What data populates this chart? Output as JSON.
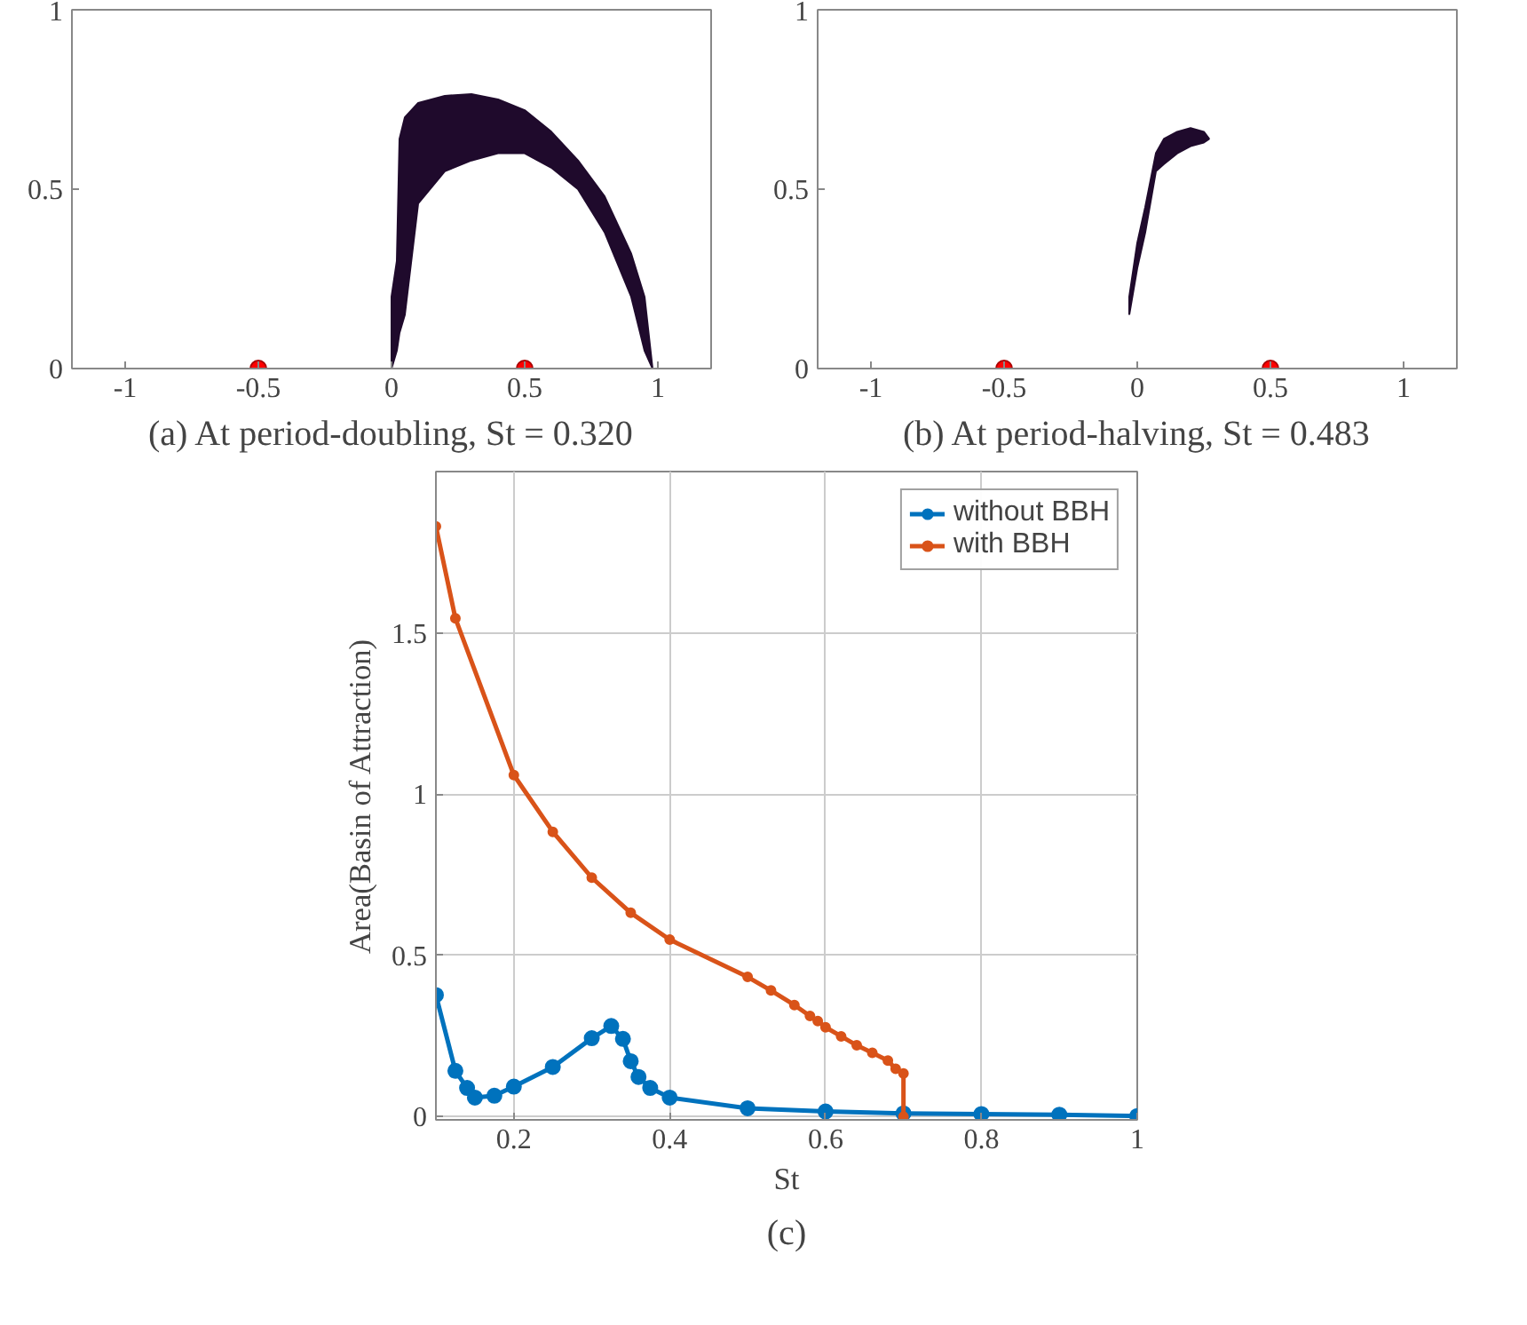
{
  "chart_data": [
    {
      "type": "scatter",
      "title": "(a) At period-doubling, St = 0.320",
      "xlim": [
        -1.2,
        1.2
      ],
      "ylim": [
        0,
        1
      ],
      "xticks": [
        -1,
        -0.5,
        0,
        0.5,
        1
      ],
      "yticks": [
        0,
        0.5,
        1
      ],
      "grid": false,
      "series": [
        {
          "type": "area",
          "color": "#1f0a2c",
          "x": [
            0.0,
            0.02,
            0.03,
            0.05,
            0.1,
            0.2,
            0.3,
            0.4,
            0.5,
            0.6,
            0.7,
            0.8,
            0.9,
            0.95,
            0.98,
            0.95,
            0.9,
            0.8,
            0.7,
            0.6,
            0.5,
            0.4,
            0.3,
            0.2,
            0.1,
            0.05,
            0.03,
            0.02,
            0.0
          ],
          "values": [
            0.2,
            0.3,
            0.64,
            0.7,
            0.74,
            0.76,
            0.765,
            0.75,
            0.72,
            0.66,
            0.58,
            0.48,
            0.32,
            0.2,
            0.0,
            0.05,
            0.2,
            0.38,
            0.5,
            0.56,
            0.6,
            0.6,
            0.58,
            0.55,
            0.46,
            0.15,
            0.1,
            0.05,
            0.0
          ]
        },
        {
          "type": "scatter",
          "marker": "circle",
          "color": "#ff0000",
          "x": [
            -0.5,
            0.5
          ],
          "values": [
            0,
            0
          ]
        }
      ]
    },
    {
      "type": "scatter",
      "title": "(b) At period-halving, St = 0.483",
      "xlim": [
        -1.2,
        1.2
      ],
      "ylim": [
        0,
        1
      ],
      "xticks": [
        -1,
        -0.5,
        0,
        0.5,
        1
      ],
      "yticks": [
        0,
        0.5,
        1
      ],
      "grid": false,
      "series": [
        {
          "type": "area",
          "color": "#1f0a2c",
          "x": [
            -0.03,
            0.0,
            0.03,
            0.07,
            0.1,
            0.15,
            0.2,
            0.25,
            0.27,
            0.25,
            0.2,
            0.15,
            0.1,
            0.07,
            0.03,
            0.0,
            -0.03
          ],
          "values": [
            0.2,
            0.35,
            0.45,
            0.6,
            0.64,
            0.66,
            0.67,
            0.66,
            0.64,
            0.63,
            0.62,
            0.6,
            0.57,
            0.55,
            0.38,
            0.28,
            0.15
          ]
        },
        {
          "type": "scatter",
          "marker": "circle",
          "color": "#ff0000",
          "x": [
            -0.5,
            0.5
          ],
          "values": [
            0,
            0
          ]
        }
      ]
    },
    {
      "type": "line",
      "title": "(c)",
      "xlabel": "St",
      "ylabel": "Area(Basin of Attraction)",
      "xlim": [
        0.1,
        1
      ],
      "ylim": [
        -0.01,
        2
      ],
      "xticks": [
        0.2,
        0.4,
        0.6,
        0.8,
        1
      ],
      "yticks": [
        0,
        0.5,
        1,
        1.5
      ],
      "grid": true,
      "legend": "top right",
      "marker": "circle",
      "line_style": "solid",
      "series": [
        {
          "name": "without BBH",
          "color": "#0072bd",
          "x": [
            0.1,
            0.125,
            0.14,
            0.15,
            0.175,
            0.2,
            0.25,
            0.3,
            0.325,
            0.34,
            0.35,
            0.36,
            0.375,
            0.4,
            0.5,
            0.6,
            0.7,
            0.8,
            0.9,
            1.0
          ],
          "values": [
            0.377,
            0.142,
            0.089,
            0.059,
            0.065,
            0.093,
            0.154,
            0.243,
            0.281,
            0.241,
            0.172,
            0.123,
            0.089,
            0.059,
            0.026,
            0.016,
            0.01,
            0.008,
            0.006,
            0.002
          ]
        },
        {
          "name": "with BBH",
          "color": "#d95319",
          "x": [
            0.1,
            0.125,
            0.2,
            0.25,
            0.3,
            0.35,
            0.4,
            0.5,
            0.53,
            0.56,
            0.58,
            0.59,
            0.6,
            0.62,
            0.64,
            0.66,
            0.68,
            0.69,
            0.7,
            0.7
          ],
          "values": [
            1.83,
            1.545,
            1.059,
            0.883,
            0.741,
            0.632,
            0.549,
            0.433,
            0.391,
            0.346,
            0.312,
            0.296,
            0.277,
            0.249,
            0.221,
            0.198,
            0.174,
            0.148,
            0.134,
            0.0
          ]
        }
      ]
    }
  ]
}
